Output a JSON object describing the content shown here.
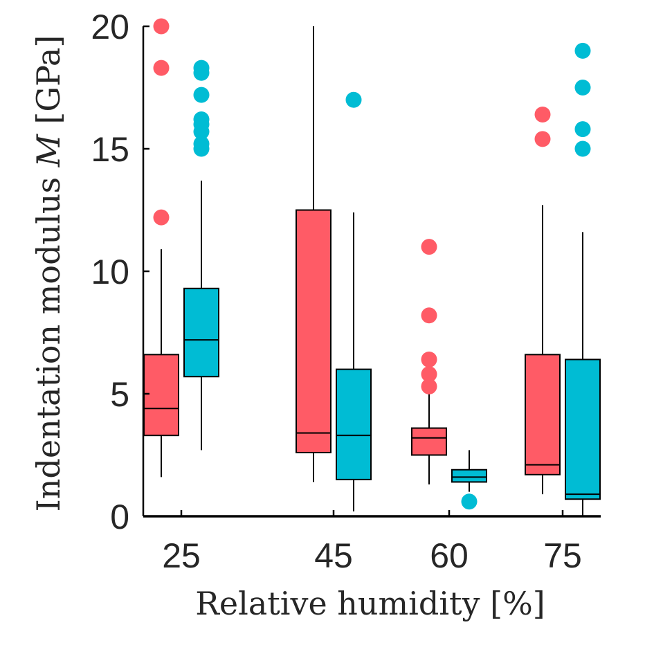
{
  "chart_data": {
    "type": "box",
    "xlabel": "Relative humidity [%]",
    "ylabel": {
      "pre": "Indentation modulus ",
      "var": "M",
      "post": " [GPa]"
    },
    "categories": [
      "25",
      "45",
      "60",
      "75"
    ],
    "ylim": [
      0,
      20
    ],
    "yticks": [
      "0",
      "5",
      "10",
      "15",
      "20"
    ],
    "grid": false,
    "colors": {
      "red": "#ff5b66",
      "cyan": "#00bcd4",
      "axis": "#000000",
      "text": "#262626"
    },
    "series": [
      {
        "color": "red",
        "boxes": [
          {
            "category": "25",
            "whisker_low": 1.6,
            "q1": 3.3,
            "median": 4.4,
            "q3": 6.6,
            "whisker_high": 10.9,
            "outliers": [
              20.0,
              18.3,
              12.2
            ]
          },
          {
            "category": "45",
            "whisker_low": 1.4,
            "q1": 2.6,
            "median": 3.4,
            "q3": 12.5,
            "whisker_high": 20.0,
            "outliers": []
          },
          {
            "category": "60",
            "whisker_low": 1.3,
            "q1": 2.5,
            "median": 3.2,
            "q3": 3.6,
            "whisker_high": 5.0,
            "outliers": [
              11.0,
              8.2,
              6.4,
              5.8,
              5.3
            ]
          },
          {
            "category": "75",
            "whisker_low": 0.9,
            "q1": 1.7,
            "median": 2.1,
            "q3": 6.6,
            "whisker_high": 12.7,
            "outliers": [
              16.4,
              15.4
            ]
          }
        ]
      },
      {
        "color": "cyan",
        "boxes": [
          {
            "category": "25",
            "whisker_low": 2.7,
            "q1": 5.7,
            "median": 7.2,
            "q3": 9.3,
            "whisker_high": 13.7,
            "outliers": [
              18.3,
              18.1,
              17.2,
              16.2,
              16.0,
              15.7,
              15.2,
              15.0
            ]
          },
          {
            "category": "45",
            "whisker_low": 0.2,
            "q1": 1.5,
            "median": 3.3,
            "q3": 6.0,
            "whisker_high": 12.4,
            "outliers": [
              17.0
            ]
          },
          {
            "category": "60",
            "whisker_low": 1.0,
            "q1": 1.4,
            "median": 1.6,
            "q3": 1.9,
            "whisker_high": 2.7,
            "outliers": [
              0.6
            ]
          },
          {
            "category": "75",
            "whisker_low": 0.0,
            "q1": 0.7,
            "median": 0.9,
            "q3": 6.4,
            "whisker_high": 11.6,
            "outliers": [
              19.0,
              17.5,
              15.8,
              15.0
            ]
          }
        ]
      }
    ]
  }
}
